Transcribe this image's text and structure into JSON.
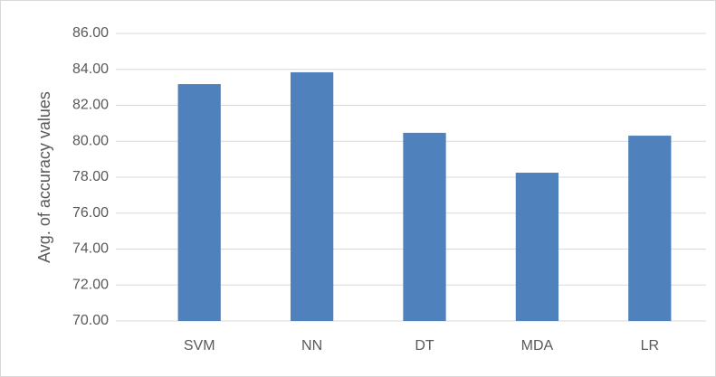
{
  "chart_data": {
    "type": "bar",
    "ylabel": "Avg. of  accuracy values",
    "categories": [
      "SVM",
      "NN",
      "DT",
      "MDA",
      "LR"
    ],
    "values": [
      83.18,
      83.84,
      80.47,
      78.25,
      80.31
    ],
    "color": "#4f81bd",
    "ylim": [
      70,
      86
    ],
    "yticks": [
      {
        "value": 70,
        "label": "70.00"
      },
      {
        "value": 72,
        "label": "72.00"
      },
      {
        "value": 74,
        "label": "74.00"
      },
      {
        "value": 76,
        "label": "76.00"
      },
      {
        "value": 78,
        "label": "78.00"
      },
      {
        "value": 80,
        "label": "80.00"
      },
      {
        "value": 82,
        "label": "82.00"
      },
      {
        "value": 84,
        "label": "84.00"
      },
      {
        "value": 86,
        "label": "86.00"
      }
    ],
    "grid": true
  }
}
